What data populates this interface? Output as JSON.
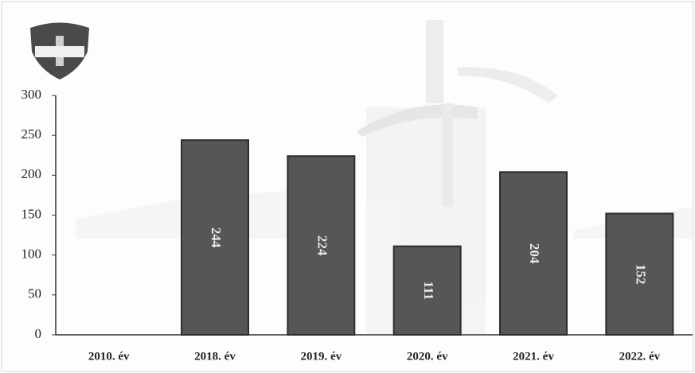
{
  "chart_data": {
    "type": "bar",
    "categories": [
      "2010. év",
      "2018. év",
      "2019. év",
      "2020. év",
      "2021. év",
      "2022. év"
    ],
    "values": [
      null,
      244,
      224,
      111,
      204,
      152
    ],
    "color": "#565656",
    "ylim": [
      0,
      300
    ],
    "yticks": [
      0,
      50,
      100,
      150,
      200,
      250,
      300
    ]
  }
}
